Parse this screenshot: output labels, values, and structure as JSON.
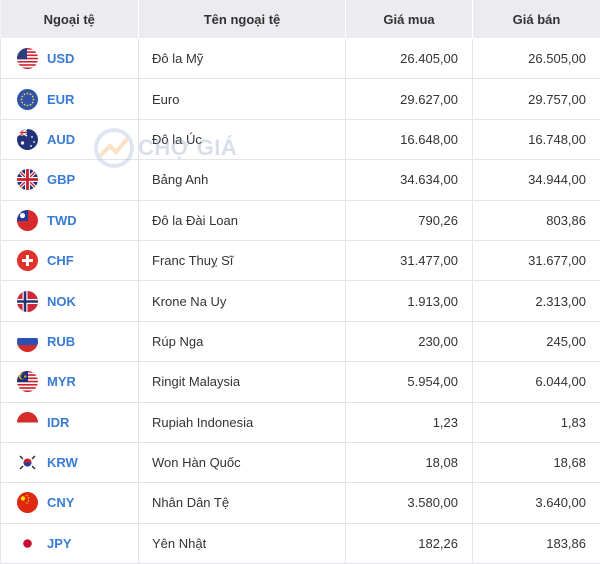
{
  "headers": {
    "code": "Ngoại tệ",
    "name": "Tên ngoại tệ",
    "buy": "Giá mua",
    "sell": "Giá bán"
  },
  "watermark": "CHỢ GIÁ",
  "colors": {
    "up": "#2ea04a",
    "down": "#e53935",
    "code": "#3a7bd5"
  },
  "rows": [
    {
      "code": "USD",
      "name": "Đô la Mỹ",
      "buy": "26.405,00",
      "sell": "26.505,00",
      "trend": "up",
      "flag": "us-flag-icon"
    },
    {
      "code": "EUR",
      "name": "Euro",
      "buy": "29.627,00",
      "sell": "29.757,00",
      "trend": "down",
      "flag": "eu-flag-icon"
    },
    {
      "code": "AUD",
      "name": "Đô la Úc",
      "buy": "16.648,00",
      "sell": "16.748,00",
      "trend": "down",
      "flag": "au-flag-icon"
    },
    {
      "code": "GBP",
      "name": "Bảng Anh",
      "buy": "34.634,00",
      "sell": "34.944,00",
      "trend": "down",
      "flag": "gb-flag-icon"
    },
    {
      "code": "TWD",
      "name": "Đô la Đài Loan",
      "buy": "790,26",
      "sell": "803,86",
      "trend": "up",
      "flag": "tw-flag-icon"
    },
    {
      "code": "CHF",
      "name": "Franc Thuỵ Sĩ",
      "buy": "31.477,00",
      "sell": "31.677,00",
      "trend": "down",
      "flag": "ch-flag-icon"
    },
    {
      "code": "NOK",
      "name": "Krone Na Uy",
      "buy": "1.913,00",
      "sell": "2.313,00",
      "trend": "down",
      "flag": "no-flag-icon"
    },
    {
      "code": "RUB",
      "name": "Rúp Nga",
      "buy": "230,00",
      "sell": "245,00",
      "trend": "down",
      "flag": "ru-flag-icon"
    },
    {
      "code": "MYR",
      "name": "Ringit Malaysia",
      "buy": "5.954,00",
      "sell": "6.044,00",
      "trend": "up",
      "flag": "my-flag-icon"
    },
    {
      "code": "IDR",
      "name": "Rupiah Indonesia",
      "buy": "1,23",
      "sell": "1,83",
      "trend": "up",
      "flag": "id-flag-icon"
    },
    {
      "code": "KRW",
      "name": "Won Hàn Quốc",
      "buy": "18,08",
      "sell": "18,68",
      "trend": "up",
      "flag": "kr-flag-icon"
    },
    {
      "code": "CNY",
      "name": "Nhân Dân Tệ",
      "buy": "3.580,00",
      "sell": "3.640,00",
      "trend": "up",
      "flag": "cn-flag-icon"
    },
    {
      "code": "JPY",
      "name": "Yên Nhật",
      "buy": "182,26",
      "sell": "183,86",
      "trend": "up",
      "flag": "jp-flag-icon"
    }
  ]
}
